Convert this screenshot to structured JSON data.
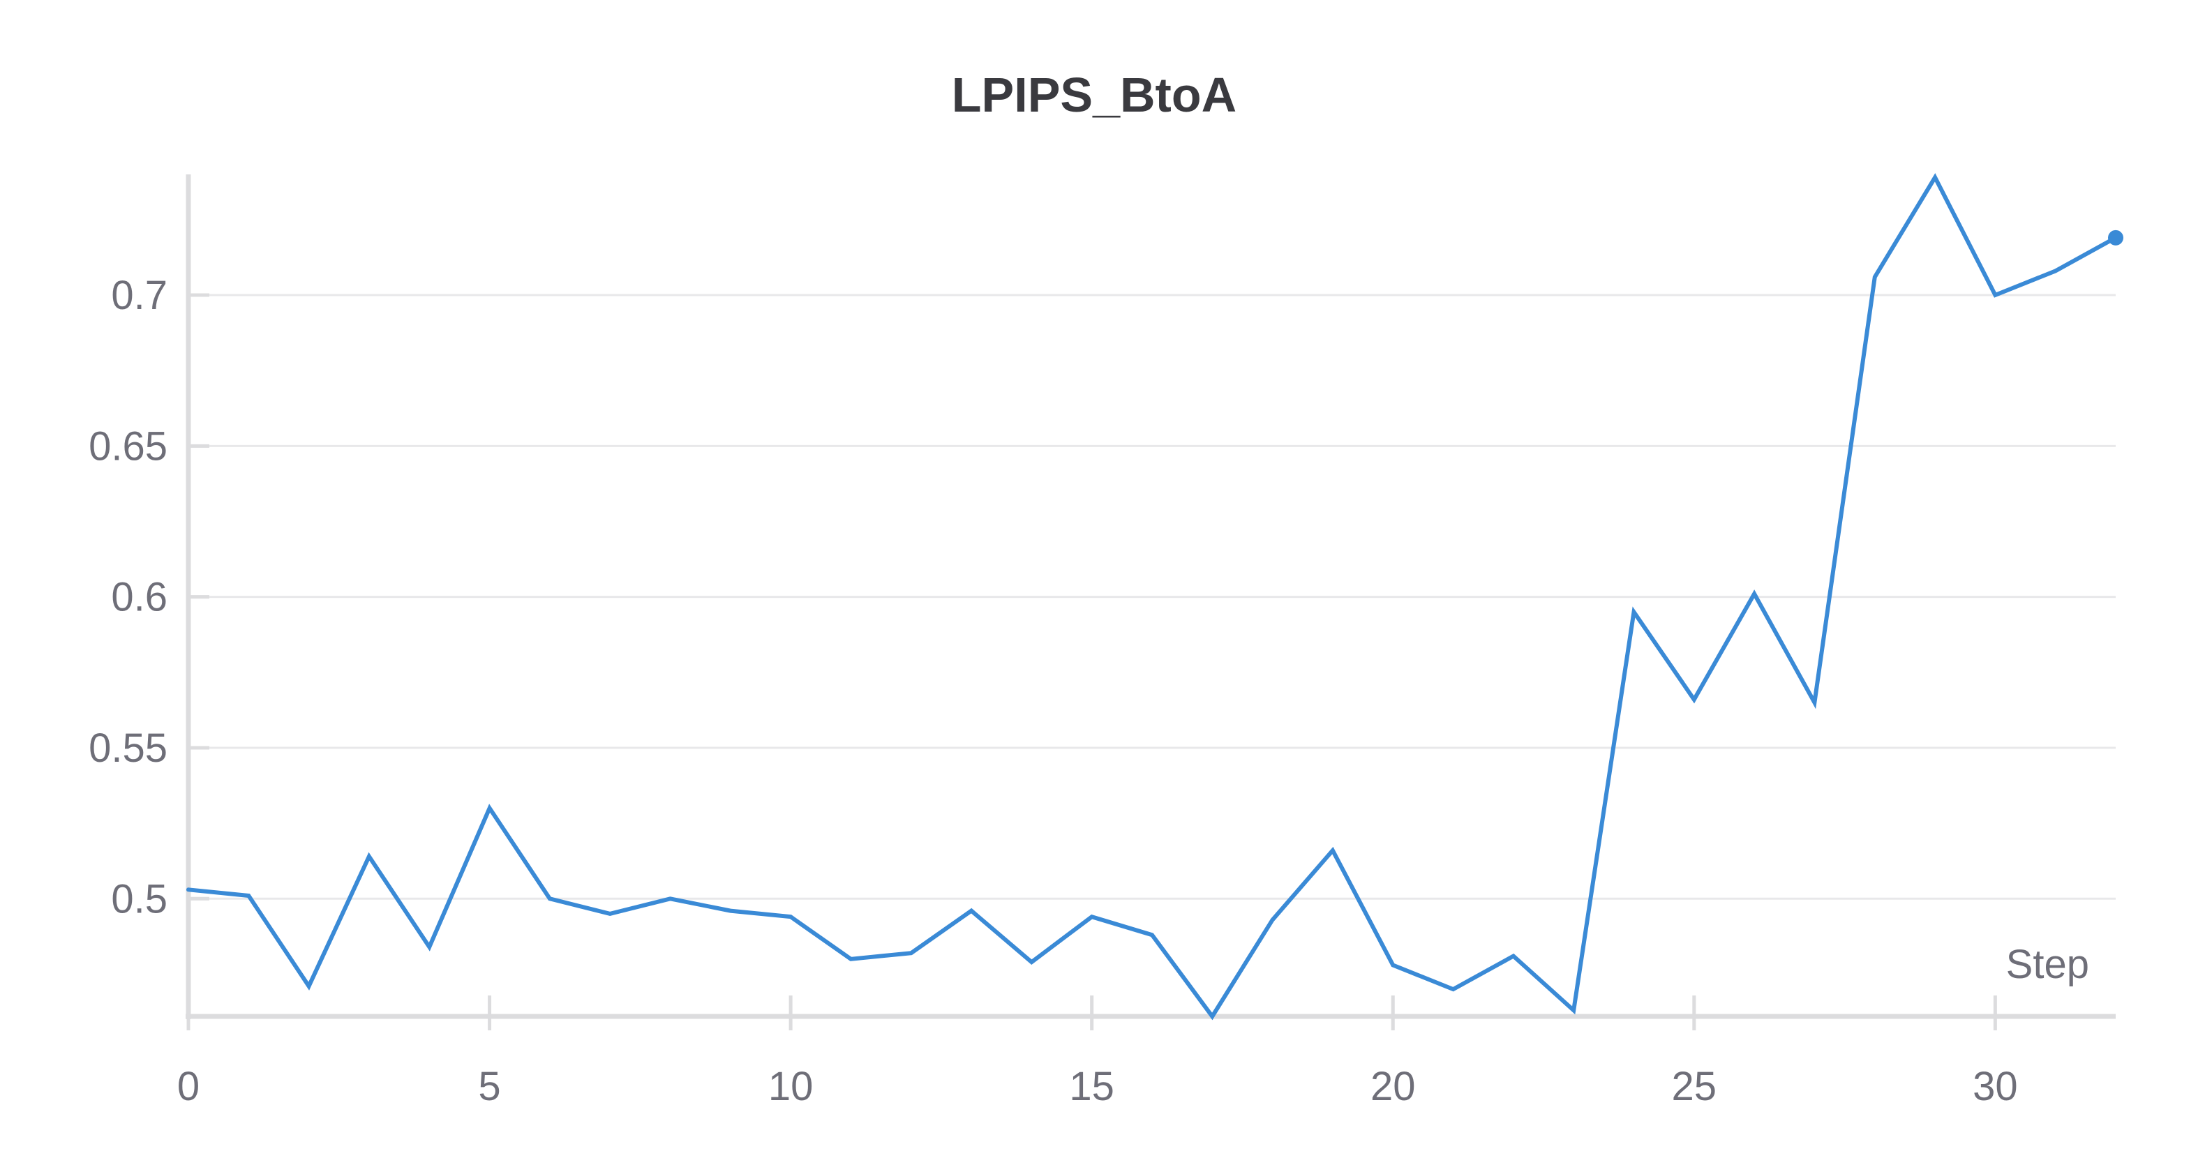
{
  "chart_data": {
    "type": "line",
    "title": "LPIPS_BtoA",
    "xlabel": "Step",
    "ylabel": "",
    "xlim": [
      0,
      32
    ],
    "ylim": [
      0.461,
      0.74
    ],
    "xticks": [
      0,
      5,
      10,
      15,
      20,
      25,
      30
    ],
    "yticks": [
      0.5,
      0.55,
      0.6,
      0.65,
      0.7
    ],
    "ytick_labels": [
      "0.5",
      "0.55",
      "0.6",
      "0.65",
      "0.7"
    ],
    "xtick_labels": [
      "0",
      "5",
      "10",
      "15",
      "20",
      "25",
      "30"
    ],
    "grid": true,
    "legend": "none",
    "colors": {
      "series": "#3a8ad6",
      "grid": "#e8e8ea",
      "axis": "#dcdcde",
      "title": "#3a3a3f",
      "ticks": "#6e6e78"
    },
    "series": [
      {
        "x": [
          0,
          1,
          2,
          3,
          4,
          5,
          6,
          7,
          8,
          9,
          10,
          11,
          12,
          13,
          14,
          15,
          16,
          17,
          18,
          19,
          20,
          21,
          22,
          23,
          24,
          25,
          26,
          27,
          28,
          29,
          30,
          31,
          32
        ],
        "values": [
          0.503,
          0.501,
          0.471,
          0.514,
          0.484,
          0.53,
          0.5,
          0.495,
          0.5,
          0.496,
          0.494,
          0.48,
          0.482,
          0.496,
          0.479,
          0.494,
          0.488,
          0.461,
          0.493,
          0.516,
          0.478,
          0.47,
          0.481,
          0.463,
          0.595,
          0.566,
          0.601,
          0.565,
          0.706,
          0.739,
          0.7,
          0.708,
          0.719
        ],
        "last_point_marker": true
      }
    ]
  }
}
